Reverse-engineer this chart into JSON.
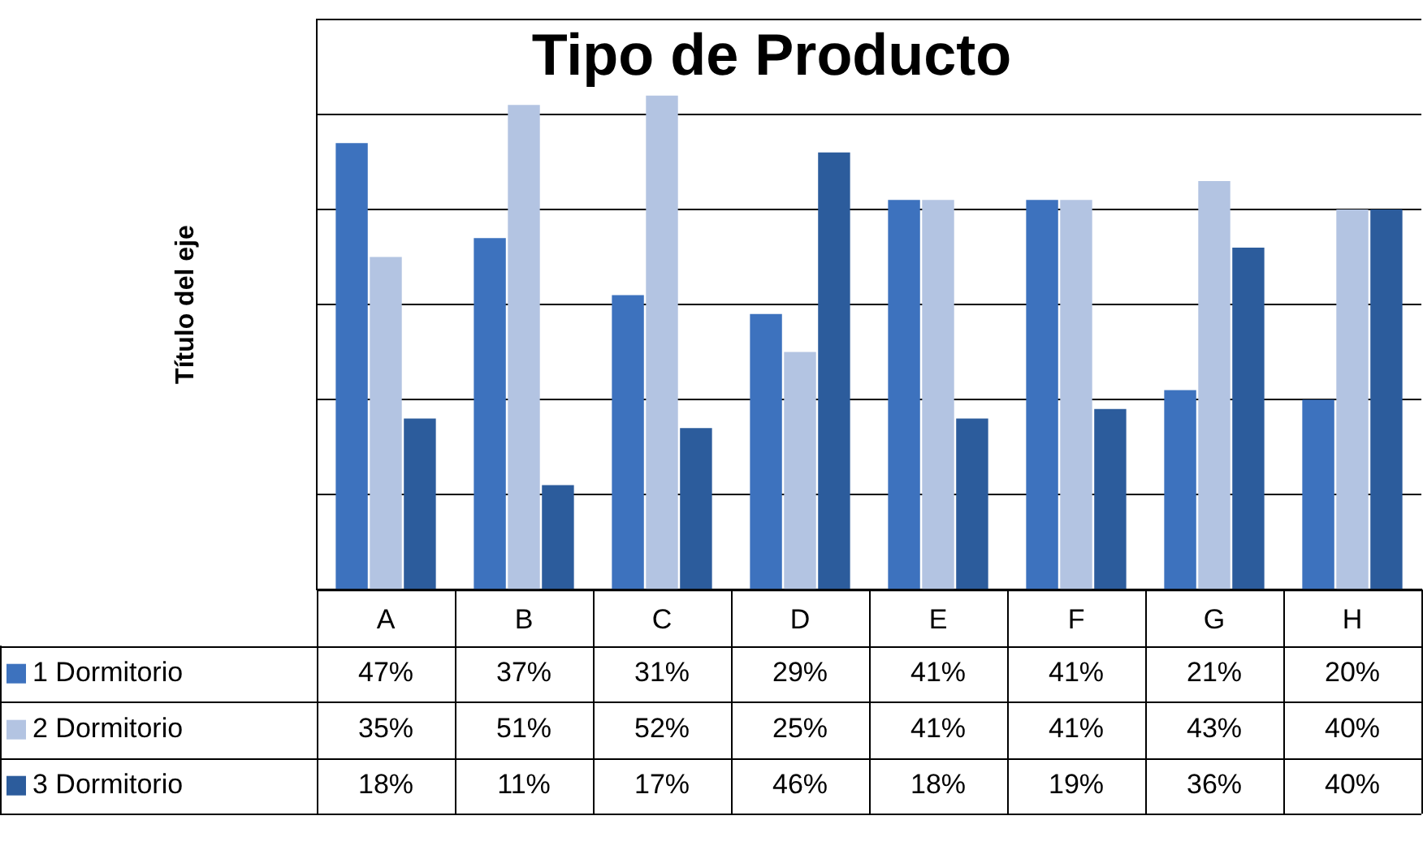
{
  "chart_data": {
    "type": "bar",
    "title": "Tipo de Producto",
    "ylabel": "Título del eje",
    "categories": [
      "A",
      "B",
      "C",
      "D",
      "E",
      "F",
      "G",
      "H"
    ],
    "series": [
      {
        "name": "1 Dormitorio",
        "color": "#3d72be",
        "values": [
          47,
          37,
          31,
          29,
          41,
          41,
          21,
          20
        ],
        "value_labels": [
          "47%",
          "37%",
          "31%",
          "29%",
          "41%",
          "41%",
          "21%",
          "20%"
        ]
      },
      {
        "name": "2 Dormitorio",
        "color": "#b3c4e2",
        "values": [
          35,
          51,
          52,
          25,
          41,
          41,
          43,
          40
        ],
        "value_labels": [
          "35%",
          "51%",
          "52%",
          "25%",
          "41%",
          "41%",
          "43%",
          "40%"
        ]
      },
      {
        "name": "3 Dormitorio",
        "color": "#2c5c9c",
        "values": [
          18,
          11,
          17,
          46,
          18,
          19,
          36,
          40
        ],
        "value_labels": [
          "18%",
          "11%",
          "17%",
          "46%",
          "18%",
          "19%",
          "36%",
          "40%"
        ]
      }
    ],
    "ylim": [
      0,
      60
    ],
    "tick_labels": "x",
    "grid": "y",
    "legend": "bottom"
  }
}
